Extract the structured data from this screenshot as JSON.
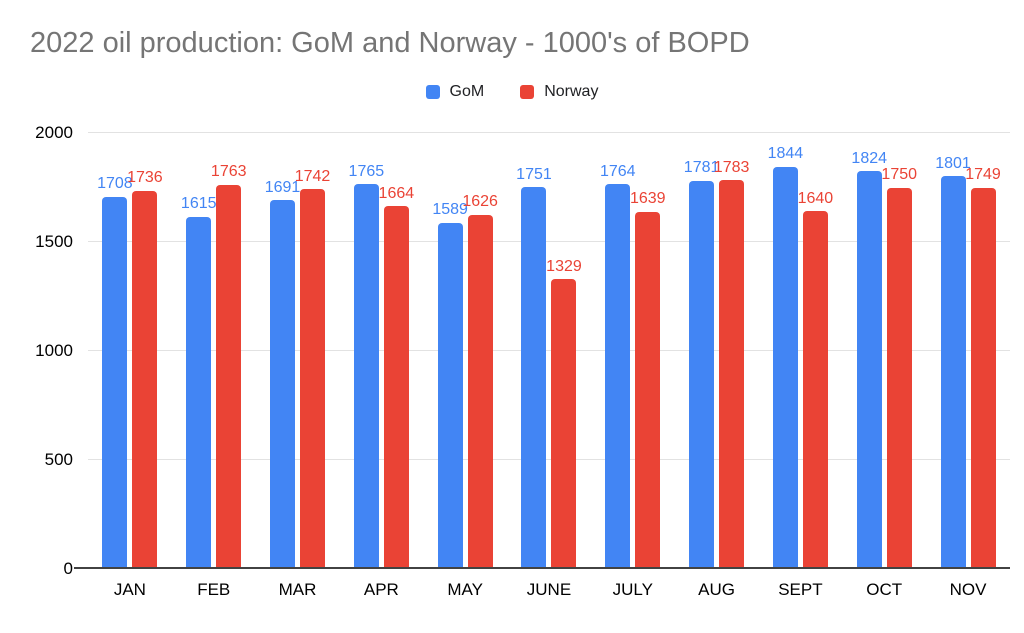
{
  "title": "2022 oil production: GoM and Norway - 1000's of BOPD",
  "legend": {
    "items": [
      {
        "label": "GoM",
        "color": "#4285F4"
      },
      {
        "label": "Norway",
        "color": "#EA4335"
      }
    ]
  },
  "colors": {
    "gom": "#4285F4",
    "norway": "#EA4335",
    "title_text": "#757575",
    "axis_text": "#000000",
    "gridline": "#e2e2e2",
    "baseline": "#424242"
  },
  "chart_data": {
    "type": "bar",
    "title": "2022 oil production: GoM and Norway - 1000's of BOPD",
    "categories": [
      "JAN",
      "FEB",
      "MAR",
      "APR",
      "MAY",
      "JUNE",
      "JULY",
      "AUG",
      "SEPT",
      "OCT",
      "NOV"
    ],
    "series": [
      {
        "name": "GoM",
        "color": "#4285F4",
        "values": [
          1708,
          1615,
          1691,
          1765,
          1589,
          1751,
          1764,
          1781,
          1844,
          1824,
          1801
        ]
      },
      {
        "name": "Norway",
        "color": "#EA4335",
        "values": [
          1736,
          1763,
          1742,
          1664,
          1626,
          1329,
          1639,
          1783,
          1640,
          1750,
          1749
        ]
      }
    ],
    "xlabel": "",
    "ylabel": "",
    "ylim": [
      0,
      2000
    ],
    "y_ticks": [
      0,
      500,
      1000,
      1500,
      2000
    ],
    "grid": true,
    "legend_position": "top",
    "data_labels": true
  }
}
